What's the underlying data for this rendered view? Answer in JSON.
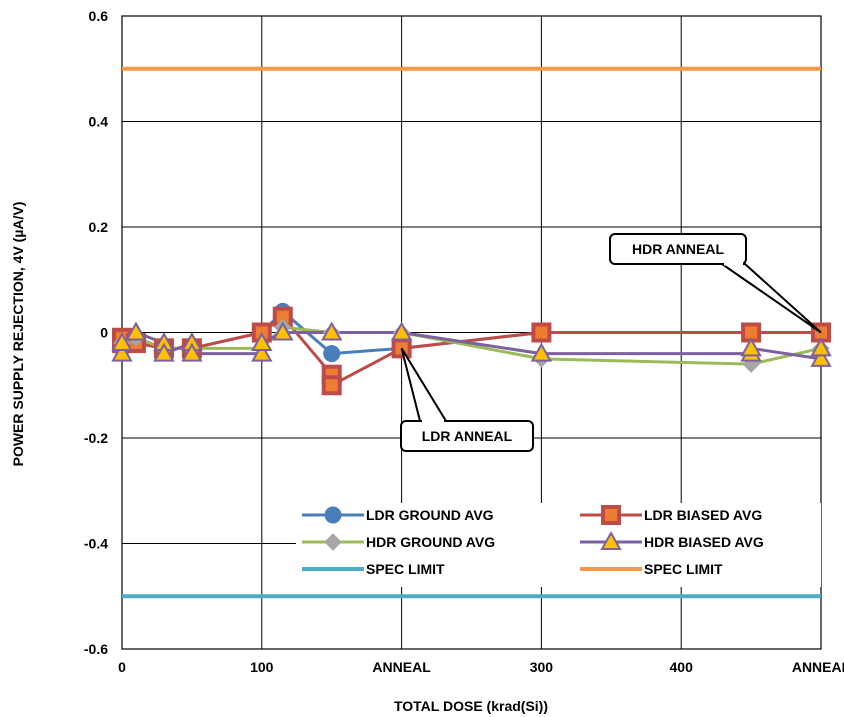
{
  "chart_data": {
    "type": "line",
    "title": "",
    "xlabel": "TOTAL DOSE (krad(Si))",
    "ylabel": "POWER SUPPLY REJECTION, 4V (µA/V)",
    "xlim": [
      0,
      500
    ],
    "ylim": [
      -0.6,
      0.6
    ],
    "x_ticks": [
      {
        "value": 0,
        "label": "0"
      },
      {
        "value": 100,
        "label": "100"
      },
      {
        "value": 200,
        "label": "ANNEAL"
      },
      {
        "value": 300,
        "label": "300"
      },
      {
        "value": 400,
        "label": "400"
      },
      {
        "value": 500,
        "label": "ANNEAL"
      }
    ],
    "y_ticks": [
      {
        "value": 0.6,
        "label": "0.6"
      },
      {
        "value": 0.4,
        "label": "0.4"
      },
      {
        "value": 0.2,
        "label": "0.2"
      },
      {
        "value": 0,
        "label": "0"
      },
      {
        "value": -0.2,
        "label": "-0.2"
      },
      {
        "value": -0.4,
        "label": "-0.4"
      },
      {
        "value": -0.6,
        "label": "-0.6"
      }
    ],
    "grid": true,
    "legend_position": "bottom-center",
    "series": [
      {
        "name": "LDR GROUND AVG",
        "color": "#4a7ebb",
        "marker": "circle",
        "points": [
          {
            "x": 0,
            "y": -0.03
          },
          {
            "x": 0,
            "y": -0.02
          },
          {
            "x": 10,
            "y": -0.02
          },
          {
            "x": 30,
            "y": -0.03
          },
          {
            "x": 50,
            "y": -0.03
          },
          {
            "x": 100,
            "y": 0
          },
          {
            "x": 115,
            "y": 0.04
          },
          {
            "x": 150,
            "y": -0.04
          },
          {
            "x": 200,
            "y": -0.03
          },
          {
            "x": 300,
            "y": 0
          },
          {
            "x": 450,
            "y": 0
          },
          {
            "x": 500,
            "y": 0
          }
        ]
      },
      {
        "name": "LDR BIASED AVG",
        "color": "#be4b48",
        "marker_fill": "#ed7d31",
        "marker": "square",
        "points": [
          {
            "x": 0,
            "y": -0.02
          },
          {
            "x": 0,
            "y": -0.01
          },
          {
            "x": 10,
            "y": -0.02
          },
          {
            "x": 30,
            "y": -0.03
          },
          {
            "x": 50,
            "y": -0.03
          },
          {
            "x": 100,
            "y": 0
          },
          {
            "x": 115,
            "y": 0.03
          },
          {
            "x": 150,
            "y": -0.08
          },
          {
            "x": 150,
            "y": -0.1
          },
          {
            "x": 200,
            "y": -0.03
          },
          {
            "x": 300,
            "y": 0
          },
          {
            "x": 450,
            "y": 0
          },
          {
            "x": 500,
            "y": 0
          }
        ]
      },
      {
        "name": "HDR GROUND AVG",
        "color": "#9bbb59",
        "marker_fill": "#a6a6a6",
        "marker": "diamond",
        "points": [
          {
            "x": 0,
            "y": -0.02
          },
          {
            "x": 10,
            "y": -0.01
          },
          {
            "x": 30,
            "y": -0.03
          },
          {
            "x": 50,
            "y": -0.03
          },
          {
            "x": 100,
            "y": -0.03
          },
          {
            "x": 115,
            "y": 0.01
          },
          {
            "x": 150,
            "y": 0
          },
          {
            "x": 200,
            "y": 0
          },
          {
            "x": 300,
            "y": -0.05
          },
          {
            "x": 450,
            "y": -0.06
          },
          {
            "x": 500,
            "y": -0.03
          }
        ]
      },
      {
        "name": "HDR BIASED AVG",
        "color": "#7d60a0",
        "marker_fill": "#ffc000",
        "marker": "triangle",
        "points": [
          {
            "x": 0,
            "y": -0.04
          },
          {
            "x": 0,
            "y": -0.02
          },
          {
            "x": 10,
            "y": 0
          },
          {
            "x": 30,
            "y": -0.02
          },
          {
            "x": 30,
            "y": -0.04
          },
          {
            "x": 50,
            "y": -0.02
          },
          {
            "x": 50,
            "y": -0.04
          },
          {
            "x": 100,
            "y": -0.04
          },
          {
            "x": 100,
            "y": -0.02
          },
          {
            "x": 115,
            "y": 0
          },
          {
            "x": 150,
            "y": 0
          },
          {
            "x": 200,
            "y": 0
          },
          {
            "x": 300,
            "y": -0.04
          },
          {
            "x": 450,
            "y": -0.04
          },
          {
            "x": 450,
            "y": -0.03
          },
          {
            "x": 500,
            "y": -0.05
          },
          {
            "x": 500,
            "y": -0.03
          }
        ]
      },
      {
        "name": "SPEC LIMIT",
        "color": "#4bacc6",
        "marker": "none",
        "points": [
          {
            "x": 0,
            "y": -0.5
          },
          {
            "x": 500,
            "y": -0.5
          }
        ]
      },
      {
        "name": "SPEC LIMIT",
        "color": "#f79646",
        "marker": "none",
        "points": [
          {
            "x": 0,
            "y": 0.5
          },
          {
            "x": 500,
            "y": 0.5
          }
        ]
      }
    ],
    "annotations": [
      {
        "text": "LDR ANNEAL",
        "points_to": {
          "x": 200,
          "y": -0.03
        }
      },
      {
        "text": "HDR ANNEAL",
        "points_to": {
          "x": 500,
          "y": 0
        }
      }
    ]
  }
}
